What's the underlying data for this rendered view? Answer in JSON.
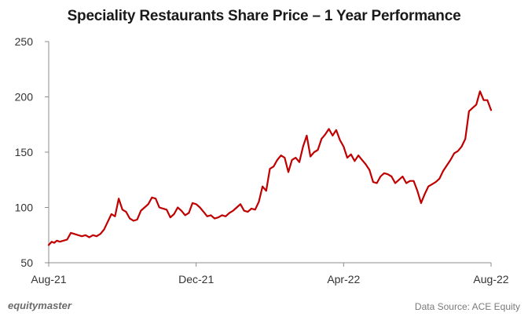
{
  "chart_data": {
    "type": "line",
    "title": "Speciality Restaurants Share Price – 1 Year Performance",
    "xlabel": "",
    "ylabel": "",
    "ylim": [
      50,
      250
    ],
    "yticks": [
      50,
      100,
      150,
      200,
      250
    ],
    "xticks": [
      "Aug-21",
      "Dec-21",
      "Apr-22",
      "Aug-22"
    ],
    "xrange": [
      0,
      12
    ],
    "grid": false,
    "series": [
      {
        "name": "Share Price",
        "color": "#c00000",
        "x": [
          0.0,
          0.08,
          0.15,
          0.22,
          0.3,
          0.4,
          0.5,
          0.6,
          0.7,
          0.8,
          0.9,
          1.0,
          1.1,
          1.2,
          1.3,
          1.4,
          1.5,
          1.6,
          1.7,
          1.8,
          1.9,
          2.0,
          2.1,
          2.2,
          2.3,
          2.4,
          2.5,
          2.6,
          2.7,
          2.8,
          2.9,
          3.0,
          3.1,
          3.2,
          3.3,
          3.4,
          3.5,
          3.6,
          3.7,
          3.8,
          3.9,
          4.0,
          4.1,
          4.2,
          4.3,
          4.4,
          4.5,
          4.6,
          4.7,
          4.8,
          4.9,
          5.0,
          5.1,
          5.2,
          5.3,
          5.4,
          5.5,
          5.6,
          5.7,
          5.8,
          5.9,
          6.0,
          6.1,
          6.2,
          6.3,
          6.4,
          6.5,
          6.6,
          6.7,
          6.8,
          6.9,
          7.0,
          7.1,
          7.2,
          7.3,
          7.4,
          7.5,
          7.6,
          7.7,
          7.8,
          7.9,
          8.0,
          8.1,
          8.2,
          8.3,
          8.4,
          8.5,
          8.6,
          8.7,
          8.8,
          8.9,
          9.0,
          9.1,
          9.2,
          9.3,
          9.4,
          9.5,
          9.6,
          9.7,
          9.8,
          9.9,
          10.0,
          10.1,
          10.2,
          10.3,
          10.4,
          10.5,
          10.6,
          10.7,
          10.8,
          10.9,
          11.0,
          11.1,
          11.2,
          11.3,
          11.4,
          11.5,
          11.6,
          11.7,
          11.8,
          11.9,
          12.0
        ],
        "values": [
          66,
          69,
          68,
          70,
          69,
          70,
          71,
          77,
          76,
          75,
          74,
          75,
          73,
          75,
          74,
          76,
          80,
          87,
          94,
          92,
          108,
          98,
          96,
          90,
          88,
          89,
          97,
          100,
          103,
          109,
          108,
          100,
          99,
          98,
          91,
          94,
          100,
          97,
          93,
          95,
          104,
          103,
          100,
          96,
          92,
          93,
          90,
          91,
          93,
          92,
          95,
          97,
          100,
          103,
          97,
          96,
          99,
          98,
          105,
          119,
          115,
          135,
          137,
          143,
          147,
          145,
          132,
          143,
          145,
          141,
          155,
          165,
          146,
          150,
          152,
          162,
          166,
          171,
          165,
          170,
          161,
          155,
          145,
          148,
          142,
          147,
          143,
          139,
          134,
          123,
          122,
          128,
          131,
          130,
          128,
          122,
          125,
          128,
          122,
          124,
          124,
          115,
          104,
          112,
          119,
          121,
          123,
          126,
          133,
          138,
          143,
          149,
          151,
          155,
          162,
          187,
          190,
          193,
          205,
          197,
          197,
          188
        ]
      }
    ]
  },
  "footer": {
    "brand": "equitymaster",
    "source": "Data Source: ACE Equity"
  }
}
